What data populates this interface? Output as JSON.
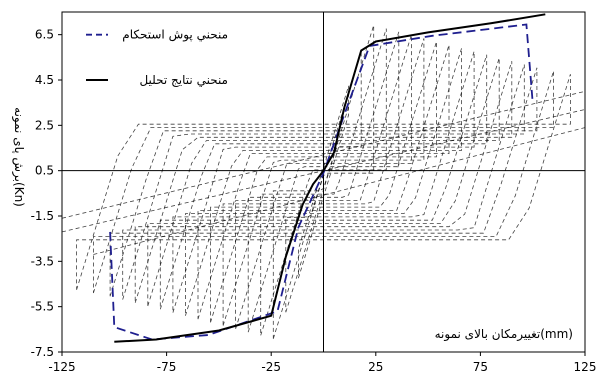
{
  "chart_data": {
    "type": "line",
    "title": "",
    "xlabel": "تغییرمکان بالای نمونه(mm)",
    "ylabel": "برش پای نمونه(Kn)",
    "xlim": [
      -125,
      125
    ],
    "ylim": [
      -7.5,
      7.5
    ],
    "x_ticks": [
      "-125",
      "-75",
      "-25",
      "25",
      "75",
      "125"
    ],
    "y_ticks": [
      "6.5",
      "4.5",
      "2.5",
      "0.5",
      "-1.5",
      "-3.5",
      "-5.5",
      "-7.5"
    ],
    "grid": false,
    "legend_position": "top-left",
    "series": [
      {
        "name": "منحني پوش استحكام",
        "style": "dashed",
        "color": "#1f1f8f",
        "x": [
          -102,
          -100,
          -82,
          -55,
          -22,
          -12,
          0,
          12,
          22,
          52,
          97,
          100
        ],
        "y": [
          -2.2,
          -6.4,
          -6.95,
          -6.75,
          -5.7,
          -2.0,
          0.4,
          3.5,
          6.0,
          6.45,
          6.95,
          3.5
        ]
      },
      {
        "name": "منحني نتايج تحليل",
        "style": "solid",
        "color": "#000000",
        "x": [
          -100,
          -80,
          -50,
          -25,
          -18,
          -10,
          -5,
          0,
          5,
          10,
          18,
          25,
          50,
          80,
          106
        ],
        "y": [
          -7.05,
          -6.95,
          -6.55,
          -5.9,
          -3.3,
          -1.0,
          -0.1,
          0.5,
          1.3,
          3.3,
          5.8,
          6.2,
          6.6,
          7.0,
          7.4
        ]
      }
    ]
  },
  "colors": {
    "frame": "#000000",
    "envelope": "#1f1f8f",
    "analysis": "#000000",
    "hysteresis": "#000000"
  }
}
